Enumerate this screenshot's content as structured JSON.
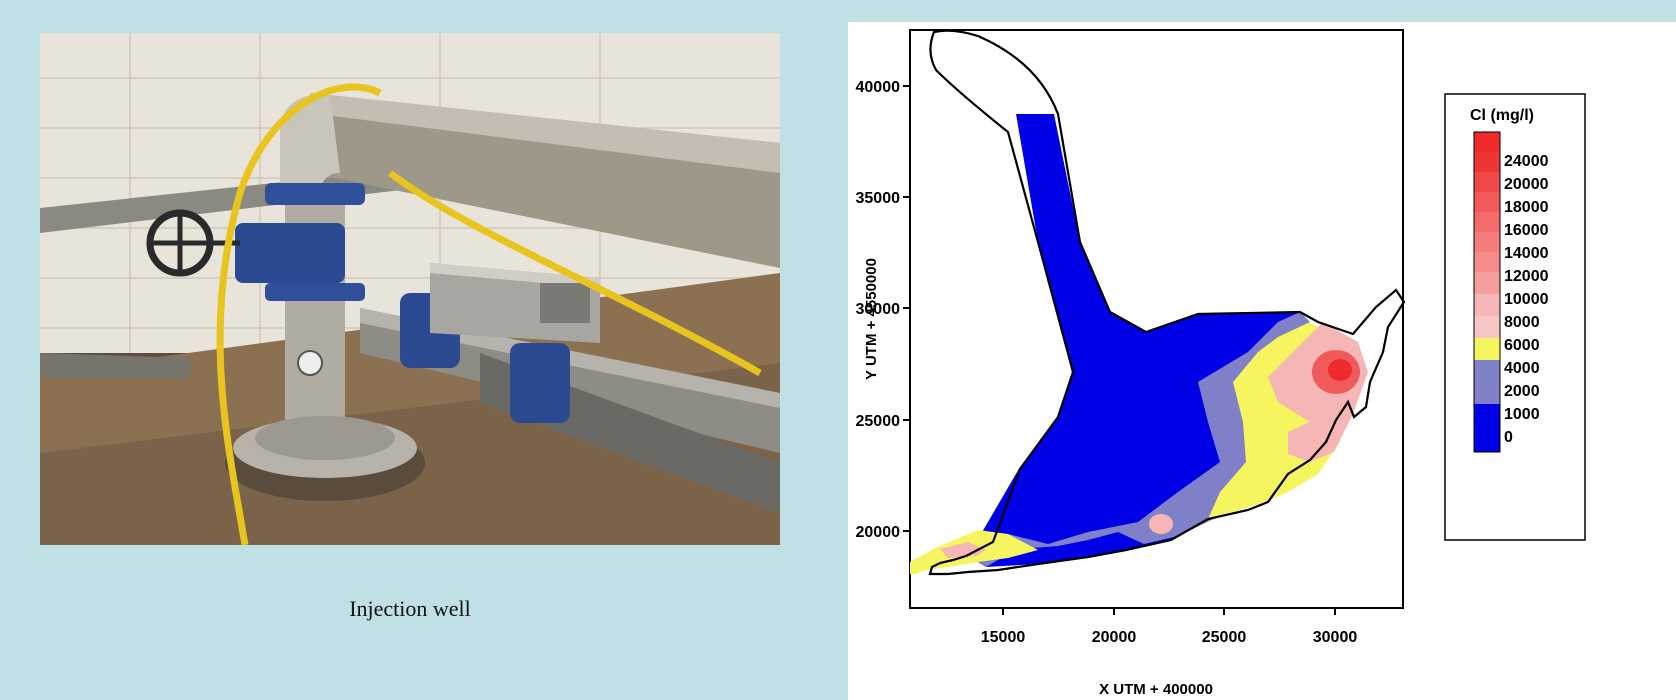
{
  "photo": {
    "caption": "Injection well"
  },
  "map": {
    "xlabel": "X UTM + 400000",
    "ylabel": "Y UTM + 4550000",
    "x_ticks": [
      "15000",
      "20000",
      "25000",
      "30000"
    ],
    "y_ticks": [
      "40000",
      "35000",
      "30000",
      "25000",
      "20000"
    ],
    "legend": {
      "title": "Cl (mg/l)",
      "levels": [
        "24000",
        "20000",
        "18000",
        "16000",
        "14000",
        "12000",
        "10000",
        "8000",
        "6000",
        "4000",
        "2000",
        "1000",
        "0"
      ]
    },
    "colors": {
      "c0": "#0000e6",
      "c1000": "#8080c8",
      "c2000": "#f5f560",
      "c4000": "#f7b6b6",
      "c24000": "#ef2a2a"
    }
  }
}
